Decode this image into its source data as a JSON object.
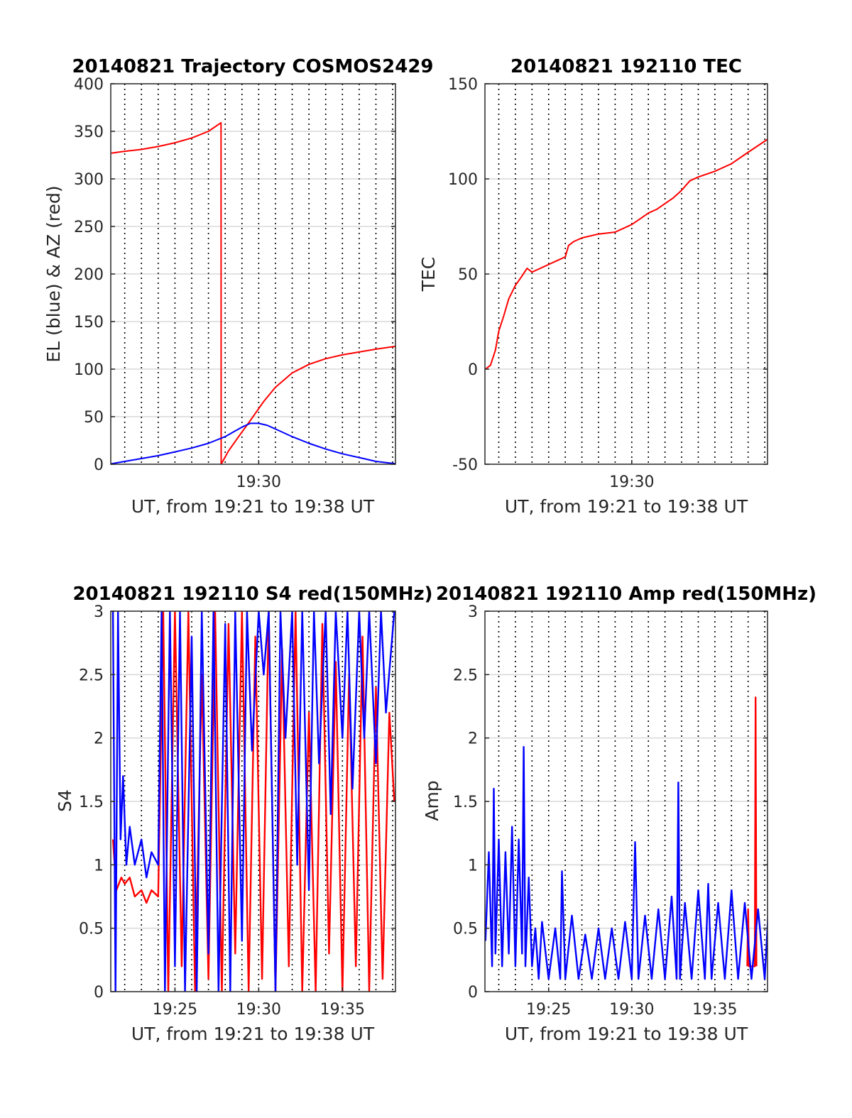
{
  "colors": {
    "red": "#ff0000",
    "blue": "#0000ff",
    "axis": "#262626",
    "grid": "#d9d9d9"
  },
  "chart_data": [
    {
      "type": "line",
      "title": "20140821 Trajectory COSMOS2429",
      "xlabel": "UT, from 19:21 to 19:38 UT",
      "ylabel": "EL (blue) & AZ (red)",
      "xlim": [
        "19:21:10",
        "19:38:10"
      ],
      "ylim": [
        0,
        400
      ],
      "yticks": [
        0,
        50,
        100,
        150,
        200,
        250,
        300,
        350,
        400
      ],
      "xtick_labels": [
        {
          "x": 30,
          "label": "19:30"
        }
      ],
      "grid": true,
      "series": [
        {
          "color": "red",
          "x": [
            21.2,
            22,
            23,
            24,
            25,
            26,
            27,
            27.75,
            27.76,
            28.2,
            28.8,
            29.5,
            30.3,
            31,
            32,
            33,
            34,
            35,
            36,
            37,
            38.2
          ],
          "values": [
            327,
            329,
            331,
            334,
            338,
            343,
            350,
            359,
            0,
            14,
            29,
            46,
            66,
            81,
            96,
            105,
            111,
            115,
            118,
            121,
            124
          ]
        },
        {
          "color": "blue",
          "x": [
            21.2,
            22,
            23,
            24,
            25,
            26,
            27,
            28,
            28.5,
            29,
            29.5,
            30,
            30.5,
            31,
            32,
            33,
            34,
            35,
            36,
            37,
            38.2
          ],
          "values": [
            0.5,
            3,
            6,
            9,
            13,
            17,
            22,
            29,
            34,
            39,
            43,
            43,
            41,
            37,
            29,
            22,
            16,
            11,
            7,
            3,
            0.5
          ]
        }
      ]
    },
    {
      "type": "line",
      "title": "20140821 192110 TEC",
      "xlabel": "UT, from 19:21 to 19:38 UT",
      "ylabel": "TEC",
      "xlim": [
        "19:21:10",
        "19:38:10"
      ],
      "ylim": [
        -50,
        150
      ],
      "yticks": [
        -50,
        0,
        50,
        100,
        150
      ],
      "xtick_labels": [
        {
          "x": 30,
          "label": "19:30"
        }
      ],
      "grid": true,
      "series": [
        {
          "color": "red",
          "x": [
            21.2,
            21.5,
            21.8,
            22,
            22.3,
            22.6,
            23,
            23.4,
            23.7,
            24,
            24.5,
            25,
            25.5,
            26,
            26.2,
            26.5,
            27,
            28,
            29,
            29.5,
            30,
            30.5,
            31,
            31.5,
            32,
            32.5,
            33,
            33.5,
            34,
            35,
            36,
            37,
            38.2
          ],
          "values": [
            0,
            2,
            10,
            20,
            28,
            37,
            44,
            49,
            53,
            51,
            53,
            55,
            57,
            59,
            65,
            67,
            69,
            71,
            72,
            74,
            76,
            79,
            82,
            84,
            87,
            90,
            94,
            99,
            101,
            104,
            108,
            114,
            121
          ]
        }
      ]
    },
    {
      "type": "line",
      "title": "20140821 192110 S4 red(150MHz)",
      "xlabel": "UT, from 19:21 to 19:38 UT",
      "ylabel": "S4",
      "xlim": [
        "19:21:10",
        "19:38:10"
      ],
      "ylim": [
        0,
        3
      ],
      "yticks": [
        0,
        0.5,
        1,
        1.5,
        2,
        2.5,
        3
      ],
      "xtick_labels": [
        {
          "x": 25,
          "label": "19:25"
        },
        {
          "x": 30,
          "label": "19:30"
        },
        {
          "x": 35,
          "label": "19:35"
        }
      ],
      "grid": true,
      "series": [
        {
          "color": "red",
          "x": [
            21.3,
            21.5,
            21.8,
            22,
            22.3,
            22.6,
            23,
            23.3,
            23.6,
            24,
            24.3,
            24.6,
            25,
            25.4,
            25.8,
            26.2,
            26.6,
            27,
            27.4,
            27.8,
            28.2,
            28.6,
            29,
            29.4,
            29.8,
            30.2,
            30.6,
            31,
            31.4,
            31.8,
            32.2,
            32.6,
            33,
            33.4,
            33.8,
            34.2,
            34.6,
            35,
            35.4,
            35.8,
            36.2,
            36.6,
            37,
            37.4,
            37.8,
            38.1
          ],
          "values": [
            1.2,
            0.8,
            0.9,
            0.85,
            0.9,
            0.75,
            0.8,
            0.7,
            0.8,
            0.75,
            3,
            0,
            3,
            0.2,
            3,
            0,
            2.5,
            0.1,
            3,
            0,
            2.9,
            0.3,
            3,
            0,
            2.8,
            0.1,
            3,
            0,
            2.7,
            0.2,
            3,
            0,
            2.2,
            0,
            2.9,
            0.3,
            2.6,
            0,
            2.5,
            0.2,
            2.8,
            0,
            2.4,
            0.1,
            2.2,
            1.5
          ]
        },
        {
          "color": "blue",
          "x": [
            21.3,
            21.45,
            21.6,
            21.75,
            21.9,
            22.1,
            22.3,
            22.6,
            23,
            23.3,
            23.6,
            24,
            24.2,
            24.4,
            24.7,
            25,
            25.3,
            25.6,
            26,
            26.3,
            26.6,
            27,
            27.3,
            27.6,
            28,
            28.3,
            28.6,
            29,
            29.3,
            29.6,
            30,
            30.3,
            30.6,
            31,
            31.3,
            31.6,
            32,
            32.3,
            32.6,
            33,
            33.3,
            33.6,
            34,
            34.3,
            34.6,
            35,
            35.3,
            35.6,
            36,
            36.3,
            36.6,
            37,
            37.3,
            37.6,
            38.1
          ],
          "values": [
            3,
            0,
            3,
            1.2,
            1.7,
            1.0,
            1.3,
            1.0,
            1.2,
            0.9,
            1.1,
            1.0,
            3,
            0,
            3,
            0.2,
            3,
            0,
            2.8,
            0,
            3,
            0.3,
            3,
            0,
            2.9,
            0,
            3,
            0.4,
            3,
            1.9,
            3,
            2.5,
            3,
            0,
            3,
            2.0,
            3,
            1.0,
            3,
            0.8,
            3,
            1.8,
            3,
            1.4,
            3,
            2.0,
            3,
            1.6,
            3,
            2.0,
            3,
            1.8,
            3,
            2.2,
            3
          ]
        }
      ]
    },
    {
      "type": "line",
      "title": "20140821 192110 Amp red(150MHz)",
      "xlabel": "UT, from 19:21 to 19:38 UT",
      "ylabel": "Amp",
      "xlim": [
        "19:21:10",
        "19:38:10"
      ],
      "ylim": [
        0,
        3
      ],
      "yticks": [
        0,
        0.5,
        1,
        1.5,
        2,
        2.5,
        3
      ],
      "xtick_labels": [
        {
          "x": 25,
          "label": "19:25"
        },
        {
          "x": 30,
          "label": "19:30"
        },
        {
          "x": 35,
          "label": "19:35"
        }
      ],
      "grid": true,
      "series": [
        {
          "color": "red",
          "x": [
            36.95,
            37.0,
            37.05,
            37.4,
            37.45,
            37.5
          ],
          "values": [
            0.2,
            0.65,
            0.2,
            0.2,
            2.32,
            0.2
          ]
        },
        {
          "color": "blue",
          "x": [
            21.2,
            21.4,
            21.6,
            21.7,
            21.8,
            22.0,
            22.2,
            22.4,
            22.6,
            22.8,
            23.0,
            23.2,
            23.4,
            23.5,
            23.6,
            23.8,
            24.0,
            24.2,
            24.4,
            24.6,
            25.0,
            25.4,
            25.7,
            25.8,
            26.0,
            26.4,
            26.8,
            27.2,
            27.6,
            28.0,
            28.4,
            28.8,
            29.2,
            29.6,
            30.0,
            30.2,
            30.4,
            30.8,
            31.2,
            31.6,
            32.0,
            32.4,
            32.7,
            32.8,
            32.9,
            33.2,
            33.6,
            34.0,
            34.4,
            34.6,
            34.8,
            35.2,
            35.6,
            36.0,
            36.4,
            36.8,
            37.2,
            37.6,
            38.0,
            38.2
          ],
          "values": [
            0.4,
            1.1,
            0.2,
            1.6,
            0.3,
            1.2,
            0.2,
            1.1,
            0.3,
            1.3,
            0.2,
            1.2,
            0.3,
            1.93,
            0.2,
            0.9,
            0.2,
            0.5,
            0.1,
            0.55,
            0.1,
            0.5,
            0.1,
            0.95,
            0.1,
            0.6,
            0.1,
            0.45,
            0.1,
            0.5,
            0.1,
            0.5,
            0.1,
            0.55,
            0.1,
            1.18,
            0.1,
            0.6,
            0.1,
            0.65,
            0.1,
            0.75,
            0.1,
            1.65,
            0.1,
            0.7,
            0.1,
            0.8,
            0.1,
            0.85,
            0.1,
            0.7,
            0.1,
            0.8,
            0.1,
            0.7,
            0.1,
            0.65,
            0.1,
            0.6
          ]
        }
      ]
    }
  ]
}
